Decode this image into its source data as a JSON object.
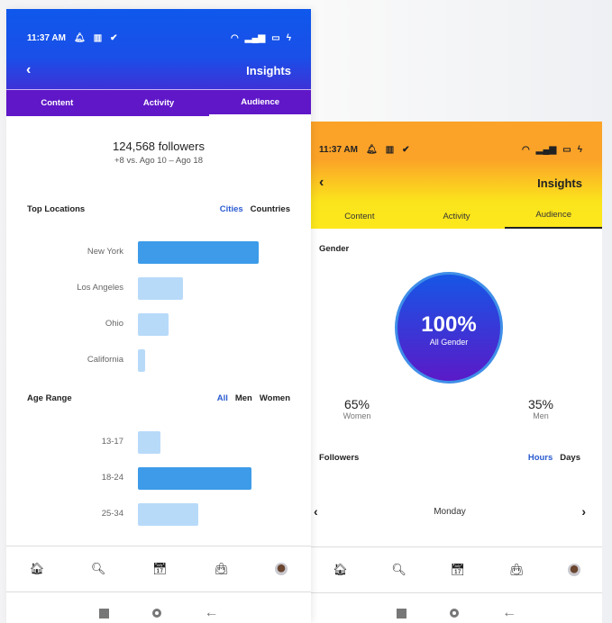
{
  "status": {
    "time": "11:37 AM",
    "icons": [
      "bell-icon",
      "chart-icon",
      "check-circle-icon",
      "wifi-icon",
      "signal-icon",
      "battery-icon",
      "charging-icon"
    ]
  },
  "header": {
    "title": "Insights",
    "back": "‹"
  },
  "tabs": [
    {
      "label": "Content"
    },
    {
      "label": "Activity"
    },
    {
      "label": "Audience",
      "active": true
    }
  ],
  "colors": {
    "left_header_top": "#0f58ec",
    "left_header_bottom": "#5b19c9",
    "right_header_top": "#fba228",
    "right_header_bottom": "#fce81c",
    "bar_primary": "#3d9be9",
    "bar_secondary": "#b8daf9",
    "accent_link": "#2a5bd0"
  },
  "audience": {
    "followers": "124,568 followers",
    "change": "+8 vs. Ago 10 – Ago 18",
    "top_locations": {
      "title": "Top Locations",
      "options": [
        "Cities",
        "Countries"
      ],
      "selected": "Cities",
      "items": [
        {
          "label": "New York",
          "percent": 80,
          "highlight": true
        },
        {
          "label": "Los Angeles",
          "percent": 30
        },
        {
          "label": "Ohio",
          "percent": 20
        },
        {
          "label": "California",
          "percent": 5
        }
      ]
    },
    "age_range": {
      "title": "Age Range",
      "options": [
        "All",
        "Men",
        "Women"
      ],
      "selected": "All",
      "items": [
        {
          "label": "13-17",
          "percent": 15
        },
        {
          "label": "18-24",
          "percent": 75,
          "highlight": true
        },
        {
          "label": "25-34",
          "percent": 40
        }
      ]
    }
  },
  "gender": {
    "title": "Gender",
    "total": "100%",
    "total_label": "All Gender",
    "women": {
      "value": "65%",
      "label": "Women"
    },
    "men": {
      "value": "35%",
      "label": "Men"
    }
  },
  "followers_section": {
    "title": "Followers",
    "options": [
      "Hours",
      "Days"
    ],
    "selected": "Hours",
    "day": "Monday",
    "prev": "‹",
    "next": "›"
  },
  "bottom_nav": [
    {
      "icon": "home-icon",
      "glyph": "🏠︎"
    },
    {
      "icon": "search-icon",
      "glyph": "🔍︎"
    },
    {
      "icon": "calendar-icon",
      "glyph": "📅︎"
    },
    {
      "icon": "shopping-bag-icon",
      "glyph": "👜︎"
    },
    {
      "icon": "avatar"
    }
  ],
  "system_nav": {
    "back": "←"
  }
}
